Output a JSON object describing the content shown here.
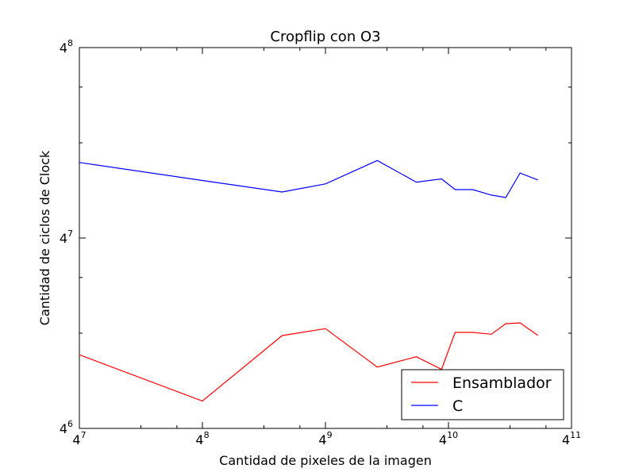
{
  "chart_data": {
    "type": "line",
    "title": "Cropflip con O3",
    "xlabel": "Cantidad de pixeles de la imagen",
    "ylabel": "Cantidad de ciclos de Clock",
    "x_scale": "log4",
    "y_scale": "log4",
    "xlim": [
      16384,
      4194304
    ],
    "ylim": [
      4096,
      65536
    ],
    "x_ticks": [
      {
        "value": 16384,
        "base": "4",
        "exp": "7"
      },
      {
        "value": 65536,
        "base": "4",
        "exp": "8"
      },
      {
        "value": 262144,
        "base": "4",
        "exp": "9"
      },
      {
        "value": 1048576,
        "base": "4",
        "exp": "10"
      },
      {
        "value": 4194304,
        "base": "4",
        "exp": "11"
      }
    ],
    "y_ticks": [
      {
        "value": 4096,
        "base": "4",
        "exp": "6"
      },
      {
        "value": 16384,
        "base": "4",
        "exp": "7"
      },
      {
        "value": 65536,
        "base": "4",
        "exp": "8"
      }
    ],
    "legend_position": "bottom-right",
    "series": [
      {
        "name": "Ensamblador",
        "color": "#ff0000",
        "x": [
          16384,
          65536,
          161000,
          262144,
          470000,
          730000,
          970000,
          1130000,
          1380000,
          1700000,
          2000000,
          2350000,
          2870000
        ],
        "y": [
          7000,
          5000,
          8050,
          8470,
          6400,
          6900,
          6300,
          8240,
          8240,
          8130,
          8780,
          8830,
          8060
        ]
      },
      {
        "name": "C",
        "color": "#0000ff",
        "x": [
          16384,
          65536,
          161000,
          262144,
          470000,
          730000,
          970000,
          1130000,
          1380000,
          1700000,
          2000000,
          2350000,
          2870000
        ],
        "y": [
          28400,
          24900,
          22900,
          24300,
          28800,
          24600,
          25200,
          23300,
          23300,
          22400,
          22000,
          26300,
          25000
        ]
      }
    ]
  }
}
